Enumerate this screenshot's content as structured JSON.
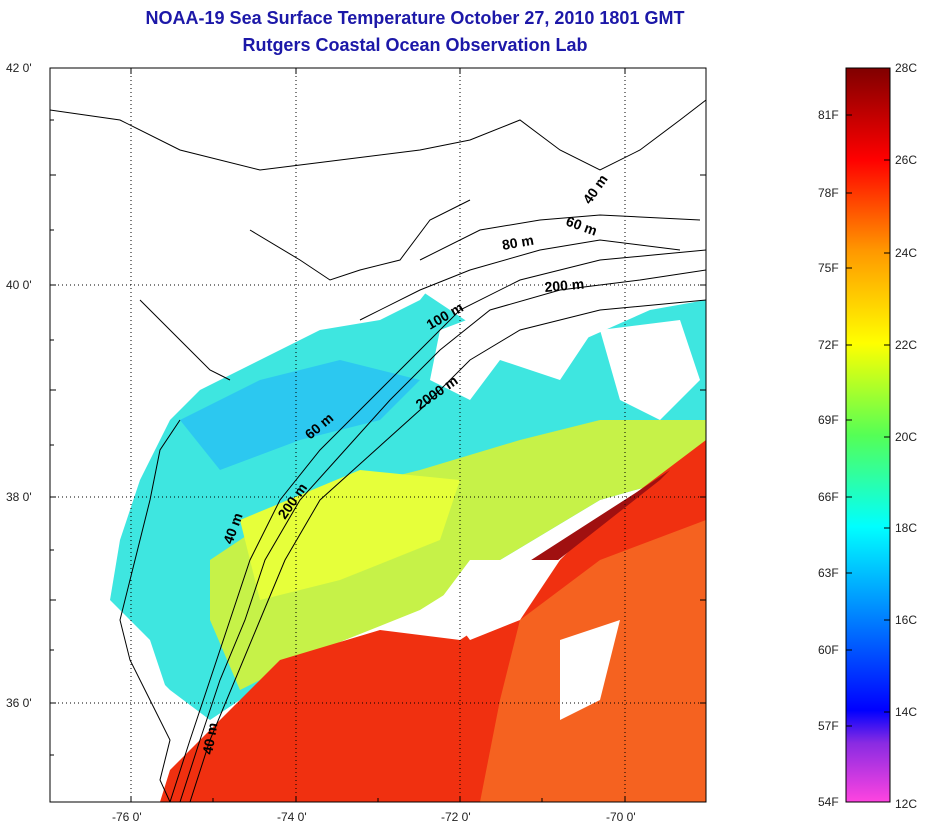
{
  "title": "NOAA-19 Sea Surface Temperature October 27, 2010 1801 GMT",
  "subtitle": "Rutgers Coastal Ocean Observation Lab",
  "map": {
    "lat_labels": [
      "42 0'",
      "40 0'",
      "38 0'",
      "36 0'"
    ],
    "lon_labels": [
      "-76 0'",
      "-74 0'",
      "-72 0'",
      "-70 0'"
    ],
    "contour_labels": [
      "40 m",
      "60 m",
      "80 m",
      "200 m",
      "100 m",
      "2000 m",
      "60 m",
      "200 m",
      "40 m",
      "40 m"
    ]
  },
  "colorbar": {
    "fahrenheit_labels": [
      "81F",
      "78F",
      "75F",
      "72F",
      "69F",
      "66F",
      "63F",
      "60F",
      "57F",
      "54F"
    ],
    "celsius_labels": [
      "28C",
      "26C",
      "24C",
      "22C",
      "20C",
      "18C",
      "16C",
      "14C",
      "12C"
    ]
  },
  "colors": {
    "title": "#1c18a8",
    "scale": [
      "#ff44e0",
      "#8a2be2",
      "#0000ff",
      "#0080ff",
      "#00ffff",
      "#55ff55",
      "#ffff00",
      "#ff9900",
      "#ff0000",
      "#800000"
    ]
  }
}
